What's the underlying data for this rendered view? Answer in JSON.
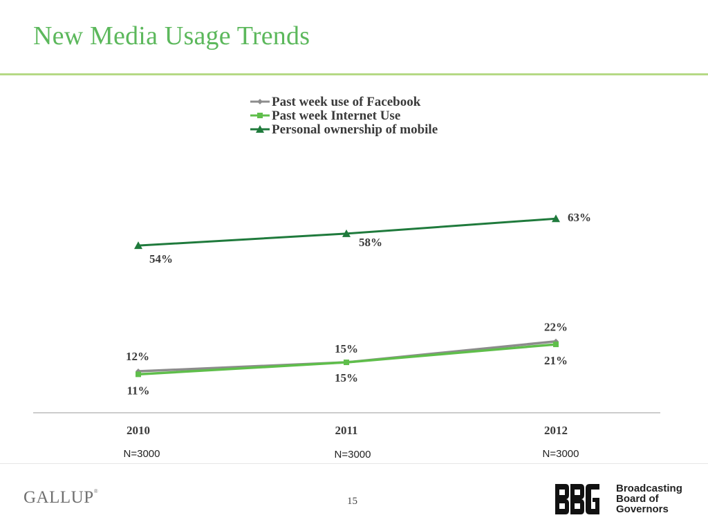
{
  "slide": {
    "title": "New Media Usage Trends",
    "page_number": "15"
  },
  "chart_data": {
    "type": "line",
    "title": "",
    "categories": [
      "2010",
      "2011",
      "2012"
    ],
    "sample_sizes": [
      "N=3000",
      "N=3000",
      "N=3000"
    ],
    "ylim": [
      0,
      100
    ],
    "grid": false,
    "legend_position": "top-center",
    "series": [
      {
        "name": "Past week use of Facebook",
        "values": [
          12,
          15,
          22
        ],
        "labels": [
          "12%",
          "15%",
          "22%"
        ],
        "color": "#8c8c8c",
        "marker": "diamond"
      },
      {
        "name": "Past week Internet Use",
        "values": [
          11,
          15,
          21
        ],
        "labels": [
          "11%",
          "15%",
          "21%"
        ],
        "color": "#5fbe4b",
        "marker": "square"
      },
      {
        "name": "Personal ownership of mobile",
        "values": [
          54,
          58,
          63
        ],
        "labels": [
          "54%",
          "58%",
          "63%"
        ],
        "color": "#1f7a3c",
        "marker": "triangle"
      }
    ]
  },
  "footer": {
    "gallup_logo": "GALLUP",
    "bbg_logo_letters": "BBG",
    "bbg_lines": [
      "Broadcasting",
      "Board of",
      "Governors"
    ]
  },
  "colors": {
    "title": "#5cb85c",
    "rule": "#b5d985"
  }
}
